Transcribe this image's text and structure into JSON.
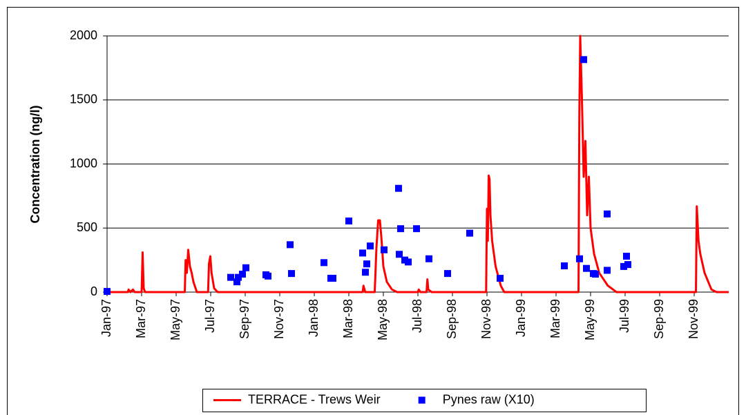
{
  "chart_data": {
    "type": "line",
    "y_label": "Concentration (ng/l)",
    "ylim": [
      0,
      2000
    ],
    "yticks": [
      0,
      500,
      1000,
      1500,
      2000
    ],
    "grid": true,
    "xlim": [
      0,
      36
    ],
    "xticks": [
      {
        "value": 0,
        "label": "Jan-97"
      },
      {
        "value": 2,
        "label": "Mar-97"
      },
      {
        "value": 4,
        "label": "May-97"
      },
      {
        "value": 6,
        "label": "Jul-97"
      },
      {
        "value": 8,
        "label": "Sep-97"
      },
      {
        "value": 10,
        "label": "Nov-97"
      },
      {
        "value": 12,
        "label": "Jan-98"
      },
      {
        "value": 14,
        "label": "Mar-98"
      },
      {
        "value": 16,
        "label": "May-98"
      },
      {
        "value": 18,
        "label": "Jul-98"
      },
      {
        "value": 20,
        "label": "Sep-98"
      },
      {
        "value": 22,
        "label": "Nov-98"
      },
      {
        "value": 24,
        "label": "Jan-99"
      },
      {
        "value": 26,
        "label": "Mar-99"
      },
      {
        "value": 28,
        "label": "May-99"
      },
      {
        "value": 30,
        "label": "Jul-99"
      },
      {
        "value": 32,
        "label": "Sep-99"
      },
      {
        "value": 34,
        "label": "Nov-99"
      }
    ],
    "legend": "bottom",
    "series": [
      {
        "name": "TERRACE - Trews Weir",
        "color": "#ff0000",
        "type": "line",
        "x": [
          0,
          1.2,
          1.25,
          1.35,
          1.5,
          1.6,
          2.0,
          2.06,
          2.12,
          2.2,
          4.5,
          4.55,
          4.62,
          4.7,
          4.8,
          4.9,
          5.0,
          5.2,
          5.85,
          5.9,
          5.98,
          6.05,
          6.2,
          6.4,
          14.8,
          14.85,
          14.95,
          15.5,
          15.6,
          15.7,
          15.8,
          15.9,
          16.0,
          16.2,
          16.5,
          16.8,
          18.0,
          18.05,
          18.15,
          18.5,
          18.55,
          18.6,
          18.8,
          21.95,
          22.0,
          22.05,
          22.1,
          22.15,
          22.2,
          22.3,
          22.5,
          22.8,
          23.0,
          27.3,
          27.35,
          27.4,
          27.5,
          27.6,
          27.7,
          27.8,
          27.9,
          28.0,
          28.2,
          28.5,
          29.0,
          29.5,
          34.1,
          34.15,
          34.25,
          34.35,
          34.6,
          35.0,
          35.3,
          36
        ],
        "values": [
          0,
          0,
          20,
          0,
          20,
          0,
          0,
          310,
          30,
          0,
          0,
          250,
          150,
          330,
          200,
          150,
          80,
          0,
          0,
          220,
          280,
          150,
          30,
          0,
          0,
          50,
          0,
          0,
          350,
          560,
          560,
          400,
          200,
          80,
          20,
          0,
          0,
          20,
          0,
          0,
          100,
          20,
          0,
          0,
          650,
          400,
          910,
          880,
          600,
          400,
          200,
          50,
          0,
          0,
          1400,
          2000,
          1500,
          900,
          1180,
          600,
          900,
          500,
          300,
          150,
          50,
          0,
          0,
          670,
          400,
          300,
          150,
          20,
          0,
          0
        ]
      },
      {
        "name": "Pynes raw (X10)",
        "color": "#0000ff",
        "type": "scatter",
        "x": [
          0,
          7.16,
          7.52,
          7.6,
          7.84,
          8.04,
          9.2,
          9.32,
          10.6,
          10.68,
          12.56,
          12.96,
          13.08,
          14,
          14.8,
          14.96,
          15.04,
          15.24,
          16.04,
          16.88,
          17,
          16.92,
          17.24,
          17.44,
          17.92,
          18.64,
          19.72,
          21,
          22.76,
          26.48,
          27.36,
          27.6,
          27.76,
          28.16,
          28.28,
          28.96,
          28.96,
          29.92,
          30.08,
          30.16
        ],
        "values": [
          5,
          115,
          80,
          115,
          140,
          190,
          135,
          125,
          370,
          145,
          230,
          108,
          108,
          555,
          305,
          155,
          220,
          360,
          330,
          810,
          495,
          295,
          250,
          235,
          495,
          260,
          145,
          460,
          108,
          205,
          260,
          1815,
          185,
          145,
          140,
          610,
          170,
          200,
          280,
          215
        ]
      }
    ]
  }
}
